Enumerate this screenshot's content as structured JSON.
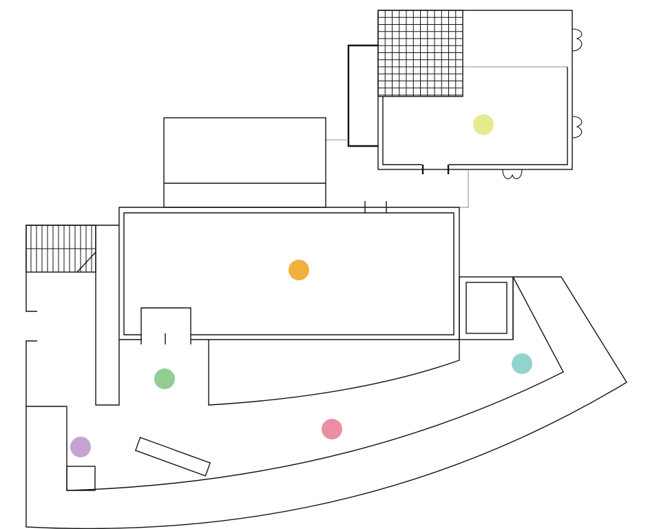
{
  "colors": {
    "wall": "#111111",
    "connector": "#8a8a8a",
    "background": "#ffffff"
  },
  "markers": [
    {
      "id": "marker-yellow",
      "color": "#e6ea8f"
    },
    {
      "id": "marker-orange",
      "color": "#f0b13f"
    },
    {
      "id": "marker-green",
      "color": "#92cd93"
    },
    {
      "id": "marker-teal",
      "color": "#93d3cf"
    },
    {
      "id": "marker-pink",
      "color": "#ea8fa3"
    },
    {
      "id": "marker-purple",
      "color": "#c5a4d2"
    }
  ]
}
